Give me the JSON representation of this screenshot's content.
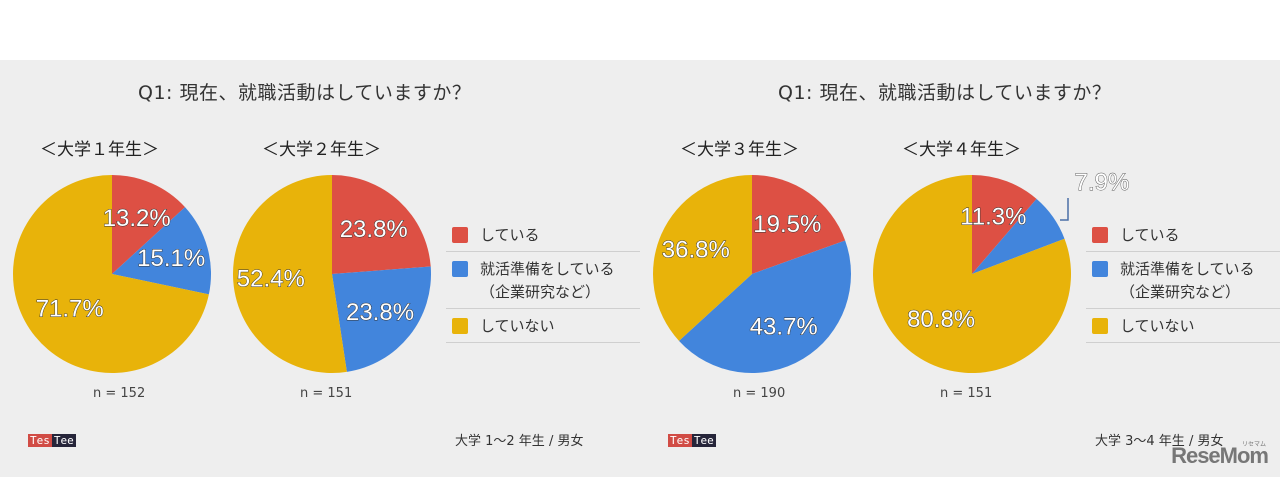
{
  "colors": {
    "doing": "#dd5044",
    "preparing": "#4285dc",
    "not_doing": "#e8b30a",
    "panel_bg": "#eeeeee"
  },
  "left": {
    "title": "Q1: 現在、就職活動はしていますか？",
    "charts": [
      {
        "subtitle": "＜大学１年生＞",
        "n": "n = 152",
        "labels": [
          "13.2%",
          "15.1%",
          "71.7%"
        ]
      },
      {
        "subtitle": "＜大学２年生＞",
        "n": "n = 151",
        "labels": [
          "23.8%",
          "23.8%",
          "52.4%"
        ]
      }
    ],
    "legend": [
      "している",
      "就活準備をしている",
      "（企業研究など）",
      "していない"
    ],
    "brand": [
      "Tes",
      "Tee"
    ],
    "footnote": "大学 1〜2 年生 / 男女"
  },
  "right": {
    "title": "Q1: 現在、就職活動はしていますか？",
    "charts": [
      {
        "subtitle": "＜大学３年生＞",
        "n": "n = 190",
        "labels": [
          "19.5%",
          "43.7%",
          "36.8%"
        ]
      },
      {
        "subtitle": "＜大学４年生＞",
        "n": "n = 151",
        "labels": [
          "11.3%",
          "7.9%",
          "80.8%"
        ]
      }
    ],
    "legend": [
      "している",
      "就活準備をしている",
      "（企業研究など）",
      "していない"
    ],
    "brand": [
      "Tes",
      "Tee"
    ],
    "footnote": "大学 3〜4 年生 / 男女"
  },
  "watermark": {
    "text": "ReseMom",
    "kana": "リセマム"
  },
  "chart_data": [
    {
      "type": "pie",
      "title": "Q1: 現在、就職活動はしていますか？ ＜大学１年生＞",
      "n": 152,
      "categories": [
        "している",
        "就活準備をしている（企業研究など）",
        "していない"
      ],
      "values": [
        13.2,
        15.1,
        71.7
      ]
    },
    {
      "type": "pie",
      "title": "Q1: 現在、就職活動はしていますか？ ＜大学２年生＞",
      "n": 151,
      "categories": [
        "している",
        "就活準備をしている（企業研究など）",
        "していない"
      ],
      "values": [
        23.8,
        23.8,
        52.4
      ]
    },
    {
      "type": "pie",
      "title": "Q1: 現在、就職活動はしていますか？ ＜大学３年生＞",
      "n": 190,
      "categories": [
        "している",
        "就活準備をしている（企業研究など）",
        "していない"
      ],
      "values": [
        19.5,
        43.7,
        36.8
      ]
    },
    {
      "type": "pie",
      "title": "Q1: 現在、就職活動はしていますか？ ＜大学４年生＞",
      "n": 151,
      "categories": [
        "している",
        "就活準備をしている（企業研究など）",
        "していない"
      ],
      "values": [
        11.3,
        7.9,
        80.8
      ]
    }
  ]
}
